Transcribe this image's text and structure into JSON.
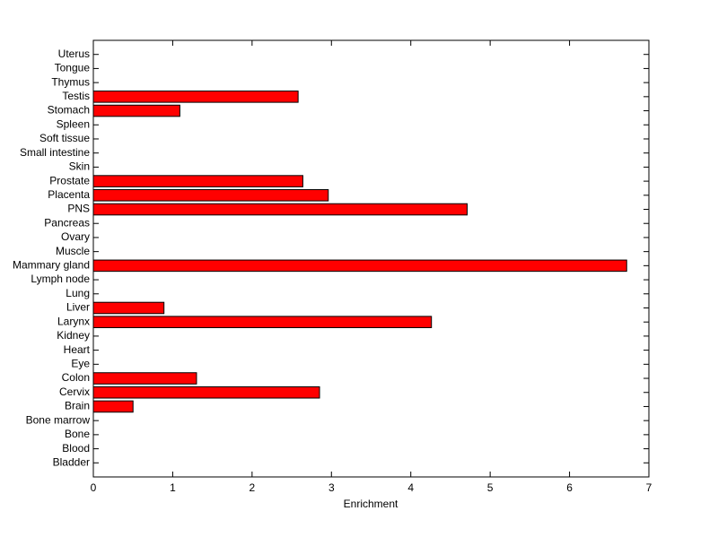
{
  "chart_data": {
    "type": "barh",
    "x_label": "Enrichment",
    "categories": [
      "Bladder",
      "Blood",
      "Bone",
      "Bone marrow",
      "Brain",
      "Cervix",
      "Colon",
      "Eye",
      "Heart",
      "Kidney",
      "Larynx",
      "Liver",
      "Lung",
      "Lymph node",
      "Mammary gland",
      "Muscle",
      "Ovary",
      "Pancreas",
      "PNS",
      "Placenta",
      "Prostate",
      "Skin",
      "Small intestine",
      "Soft tissue",
      "Spleen",
      "Stomach",
      "Testis",
      "Thymus",
      "Tongue",
      "Uterus"
    ],
    "values": [
      0,
      0,
      0,
      0,
      0.5,
      2.85,
      1.3,
      0,
      0,
      0,
      4.26,
      0.89,
      0,
      0,
      6.72,
      0,
      0,
      0,
      4.71,
      2.96,
      2.64,
      0,
      0,
      0,
      0,
      1.09,
      2.58,
      0,
      0,
      0
    ],
    "color": "#ff0000",
    "xlim": [
      0,
      7
    ],
    "xticks": [
      0,
      1,
      2,
      3,
      4,
      5,
      6,
      7
    ]
  }
}
